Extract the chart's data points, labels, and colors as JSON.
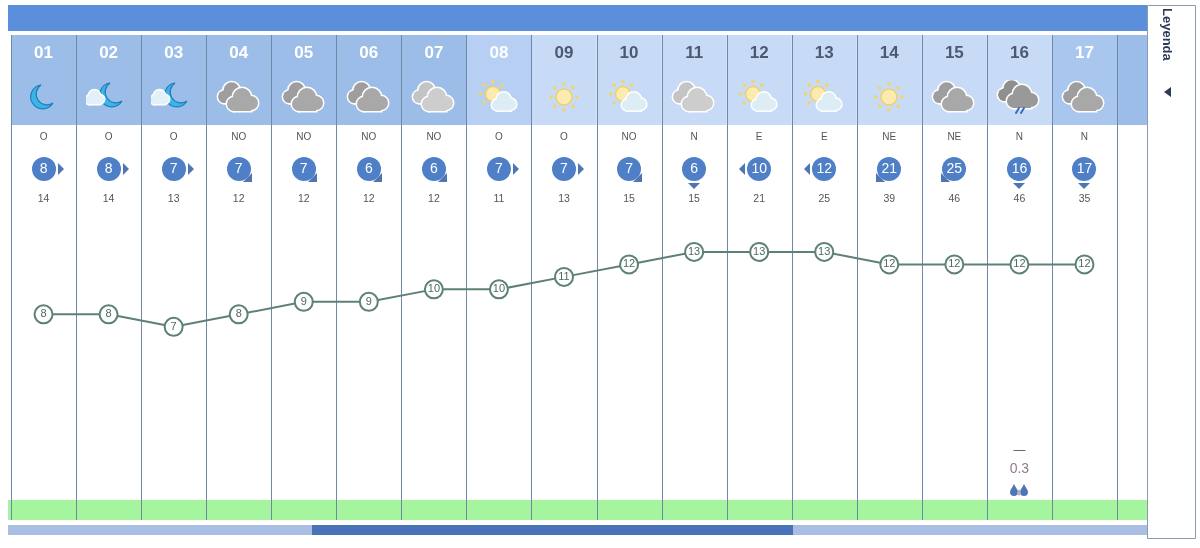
{
  "chart_data": {
    "type": "line",
    "categories": [
      "01",
      "02",
      "03",
      "04",
      "05",
      "06",
      "07",
      "08",
      "09",
      "10",
      "11",
      "12",
      "13",
      "14",
      "15",
      "16",
      "17"
    ],
    "series": [
      {
        "color": "#5d8271",
        "values": [
          8,
          8,
          7,
          8,
          9,
          9,
          10,
          10,
          11,
          12,
          13,
          13,
          13,
          12,
          12,
          12,
          12
        ]
      }
    ],
    "data_labels": true,
    "marker": "circle",
    "grid": "x",
    "annotations": [
      "O",
      "O",
      "O",
      "NO",
      "NO",
      "NO",
      "NO",
      "O",
      "O",
      "NO",
      "N",
      "E",
      "E",
      "NE",
      "NE",
      "N",
      "N",
      "8",
      "8",
      "7",
      "7",
      "7",
      "6",
      "6",
      "7",
      "7",
      "7",
      "6",
      "10",
      "12",
      "21",
      "25",
      "16",
      "17",
      "14",
      "14",
      "13",
      "12",
      "12",
      "12",
      "12",
      "11",
      "13",
      "15",
      "15",
      "21",
      "25",
      "39",
      "46",
      "46",
      "35",
      "—",
      "0.3",
      "Leyenda"
    ]
  }
}
